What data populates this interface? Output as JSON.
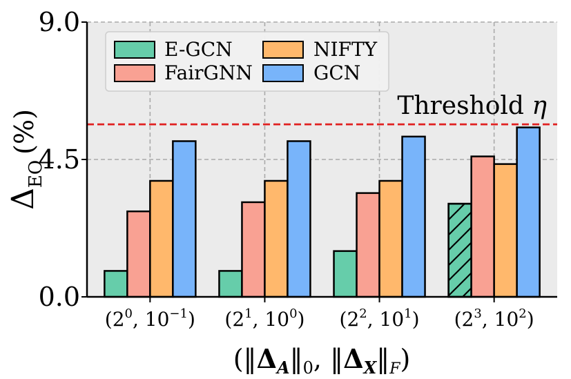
{
  "chart_data": {
    "type": "bar",
    "title": "",
    "ylabel": {
      "main": "Δ",
      "sub": "EO",
      "unit": "(%)"
    },
    "xlabel": "(‖Δ_A‖_0, ‖Δ_X‖_F)",
    "ylim": [
      0,
      9.0
    ],
    "yticks": [
      "0.0",
      "4.5",
      "9.0"
    ],
    "yticks_values": [
      0,
      4.5,
      9.0
    ],
    "grid": true,
    "categories": [
      {
        "base": "(2",
        "exp1": "0",
        "mid": ", 10",
        "exp2": "−1",
        "close": ")"
      },
      {
        "base": "(2",
        "exp1": "1",
        "mid": ", 10",
        "exp2": "0",
        "close": ")"
      },
      {
        "base": "(2",
        "exp1": "2",
        "mid": ", 10",
        "exp2": "1",
        "close": ")"
      },
      {
        "base": "(2",
        "exp1": "3",
        "mid": ", 10",
        "exp2": "2",
        "close": ")"
      }
    ],
    "series": [
      {
        "name": "E-GCN",
        "color": "#66cdaa",
        "values": [
          0.85,
          0.85,
          1.5,
          3.05
        ],
        "hatched_index": 3
      },
      {
        "name": "FairGNN",
        "color": "#f9a193",
        "values": [
          2.8,
          3.1,
          3.4,
          4.6
        ]
      },
      {
        "name": "NIFTY",
        "color": "#ffb86c",
        "values": [
          3.8,
          3.8,
          3.8,
          4.35
        ]
      },
      {
        "name": "GCN",
        "color": "#78b4fa",
        "values": [
          5.1,
          5.1,
          5.25,
          5.55
        ]
      }
    ],
    "threshold": {
      "value": 5.65,
      "label": "Threshold",
      "symbol": "η",
      "color": "#e02020"
    },
    "legend_placement": "top-left",
    "background": "#ebebeb"
  }
}
